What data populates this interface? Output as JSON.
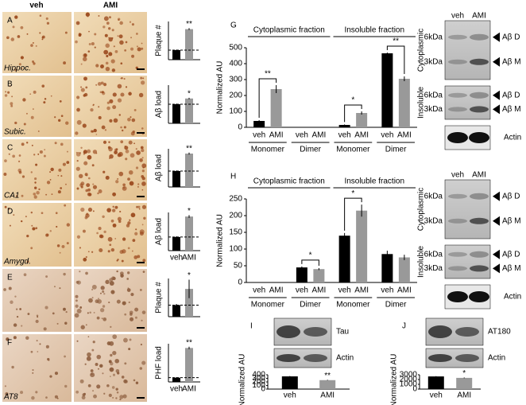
{
  "figure": {
    "columns": [
      "veh",
      "AMI"
    ],
    "panels": [
      {
        "letter": "A",
        "region": "Hippoc."
      },
      {
        "letter": "B",
        "region": "Subic."
      },
      {
        "letter": "C",
        "region": "CA1"
      },
      {
        "letter": "D",
        "region": "Amygd."
      },
      {
        "letter": "E"
      },
      {
        "letter": "F",
        "region": "AT8"
      }
    ]
  },
  "blots": [
    {
      "panel": "G",
      "lanes": [
        "veh",
        "AMI"
      ],
      "rows": [
        {
          "name": "Cytoplasmic",
          "markers": [
            "6kDa",
            "3kDa"
          ],
          "bands": [
            "Aβ D",
            "Aβ M"
          ]
        },
        {
          "name": "Insoluble",
          "markers": [
            "6kDa",
            "3kDa"
          ],
          "bands": [
            "Aβ D",
            "Aβ M"
          ]
        },
        {
          "name": "Actin"
        }
      ]
    },
    {
      "panel": "H",
      "lanes": [
        "veh",
        "AMI"
      ],
      "rows": [
        {
          "name": "Cytoplasmic",
          "markers": [
            "6kDa",
            "3kDa"
          ],
          "bands": [
            "Aβ D",
            "Aβ M"
          ]
        },
        {
          "name": "Insoluble",
          "markers": [
            "6kDa",
            "3kDa"
          ],
          "bands": [
            "Aβ D",
            "Aβ M"
          ]
        },
        {
          "name": "Actin"
        }
      ]
    }
  ],
  "chart_data": [
    {
      "type": "bar",
      "ylabel": "Plaque #",
      "values": [
        1,
        3.2
      ],
      "errors": [
        0.05,
        0.1
      ],
      "colors": [
        "#000000",
        "#999999"
      ],
      "ylim": [
        0,
        4
      ],
      "annotation": "**"
    },
    {
      "type": "bar",
      "ylabel": "Aβ load",
      "values": [
        1,
        1.3
      ],
      "errors": [
        0.03,
        0.04
      ],
      "colors": [
        "#000000",
        "#999999"
      ],
      "ylim": [
        0,
        2
      ],
      "annotation": "*"
    },
    {
      "type": "bar",
      "ylabel": "Aβ load",
      "values": [
        1,
        2.1
      ],
      "errors": [
        0.04,
        0.06
      ],
      "colors": [
        "#000000",
        "#999999"
      ],
      "ylim": [
        0,
        2.4
      ],
      "annotation": "**"
    },
    {
      "type": "bar",
      "ylabel": "Aβ load",
      "categories": [
        "veh",
        "AMI"
      ],
      "values": [
        1,
        2.5
      ],
      "errors": [
        0.05,
        0.1
      ],
      "colors": [
        "#000000",
        "#999999"
      ],
      "ylim": [
        0,
        2.8
      ],
      "annotation": "*"
    },
    {
      "type": "bar",
      "ylabel": "Plaque #",
      "values": [
        1,
        2.4
      ],
      "errors": [
        0.1,
        0.8
      ],
      "colors": [
        "#000000",
        "#999999"
      ],
      "ylim": [
        0,
        3.3
      ],
      "annotation": "*"
    },
    {
      "type": "bar",
      "ylabel": "PHF load",
      "categories": [
        "veh",
        "AMI"
      ],
      "values": [
        1,
        8
      ],
      "errors": [
        0.1,
        0.3
      ],
      "colors": [
        "#000000",
        "#999999"
      ],
      "ylim": [
        0,
        9
      ],
      "annotation": "**"
    },
    {
      "type": "fraction",
      "panel": "G",
      "ylabel": "Normalized AU",
      "ylim": [
        0,
        500
      ],
      "yticks": [
        0,
        100,
        200,
        300,
        400,
        500
      ],
      "colors": [
        "#000000",
        "#999999"
      ],
      "fractions": [
        {
          "name": "Cytoplasmic fraction",
          "groups": [
            {
              "name": "Monomer",
              "categories": [
                "veh",
                "AMI"
              ],
              "values": [
                40,
                240
              ],
              "errors": [
                5,
                25
              ],
              "annotation": "**"
            },
            {
              "name": "Dimer",
              "categories": [
                "veh",
                "AMI"
              ],
              "values": [
                0,
                0
              ],
              "errors": [
                0,
                0
              ]
            }
          ]
        },
        {
          "name": "Insoluble fraction",
          "groups": [
            {
              "name": "Monomer",
              "categories": [
                "veh",
                "AMI"
              ],
              "values": [
                15,
                90
              ],
              "errors": [
                3,
                10
              ],
              "annotation": "*"
            },
            {
              "name": "Dimer",
              "categories": [
                "veh",
                "AMI"
              ],
              "values": [
                465,
                305
              ],
              "errors": [
                5,
                15
              ],
              "annotation": "**"
            }
          ]
        }
      ]
    },
    {
      "type": "fraction",
      "panel": "H",
      "ylabel": "Normalized AU",
      "ylim": [
        0,
        250
      ],
      "yticks": [
        0,
        50,
        100,
        150,
        200,
        250
      ],
      "colors": [
        "#000000",
        "#999999"
      ],
      "fractions": [
        {
          "name": "Cytoplasmic fraction",
          "groups": [
            {
              "name": "Monomer",
              "categories": [
                "veh",
                "AMI"
              ],
              "values": [
                0,
                0
              ],
              "errors": [
                0,
                0
              ]
            },
            {
              "name": "Dimer",
              "categories": [
                "veh",
                "AMI"
              ],
              "values": [
                45,
                40
              ],
              "errors": [
                3,
                3
              ],
              "annotation": "*"
            }
          ]
        },
        {
          "name": "Insoluble fraction",
          "groups": [
            {
              "name": "Monomer",
              "categories": [
                "veh",
                "AMI"
              ],
              "values": [
                140,
                215
              ],
              "errors": [
                8,
                18
              ],
              "annotation": "*"
            },
            {
              "name": "Dimer",
              "categories": [
                "veh",
                "AMI"
              ],
              "values": [
                85,
                75
              ],
              "errors": [
                10,
                8
              ]
            }
          ]
        }
      ]
    },
    {
      "type": "simple",
      "panel": "I",
      "blot": [
        "Tau",
        "Actin"
      ],
      "ylabel": "Normalized AU",
      "categories": [
        "veh",
        "AMI"
      ],
      "values": [
        355,
        250
      ],
      "errors": [
        10,
        8
      ],
      "colors": [
        "#000000",
        "#999999"
      ],
      "ylim": [
        0,
        400
      ],
      "yticks": [
        0,
        100,
        200,
        300,
        400
      ],
      "annotation": "**"
    },
    {
      "type": "simple",
      "panel": "J",
      "blot": [
        "AT180",
        "Actin"
      ],
      "ylabel": "Normalized AU",
      "categories": [
        "veh",
        "AMI"
      ],
      "values": [
        2650,
        2350
      ],
      "errors": [
        60,
        80
      ],
      "colors": [
        "#000000",
        "#999999"
      ],
      "ylim": [
        0,
        3000
      ],
      "yticks": [
        0,
        1000,
        2000,
        3000
      ],
      "annotation": "*"
    }
  ]
}
